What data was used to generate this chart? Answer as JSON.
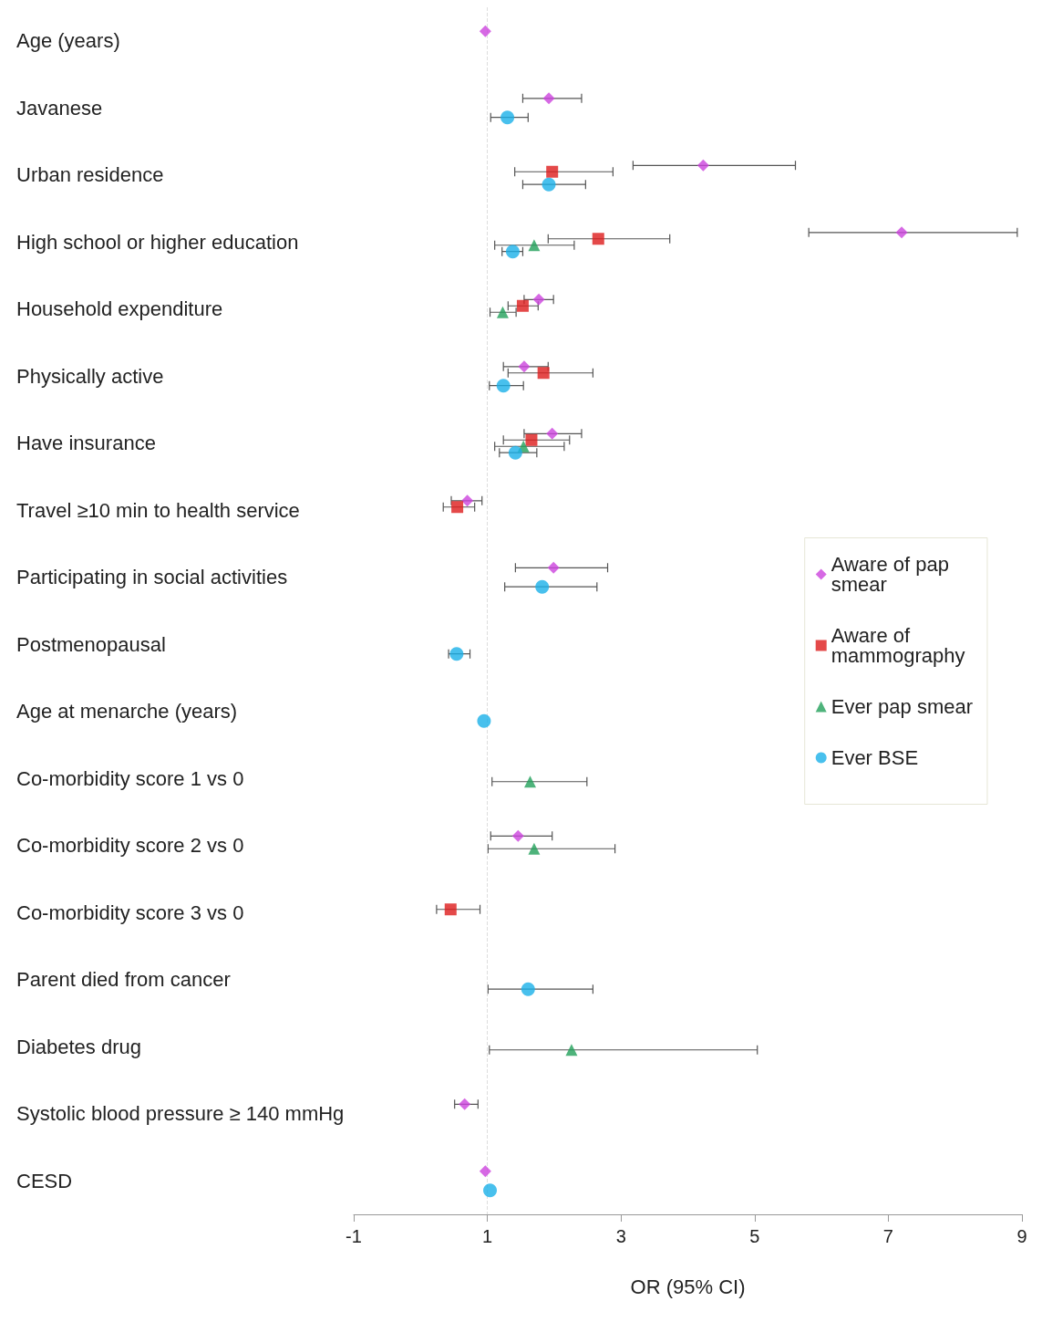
{
  "chart_data": {
    "type": "scatter",
    "orientation": "horizontal",
    "xlabel": "OR (95% CI)",
    "xlim": [
      -1,
      9
    ],
    "xticks": [
      -1,
      1,
      3,
      5,
      7,
      9
    ],
    "grid": false,
    "legend": "right",
    "categories": [
      "Age (years)",
      "Javanese",
      "Urban residence",
      "High school or higher education",
      "Household expenditure",
      "Physically active",
      "Have insurance",
      "Travel ≥10 min to health service",
      "Participating in social activities",
      "Postmenopausal",
      "Age at menarche (years)",
      "Co-morbidity score 1 vs 0",
      "Co-morbidity score 2 vs 0",
      "Co-morbidity score 3 vs 0",
      "Parent died from cancer",
      "Diabetes drug",
      "Systolic blood pressure ≥ 140 mmHg",
      "CESD"
    ],
    "ref_lines": [
      {
        "axis": "x",
        "value": 1,
        "color": "#dddddd",
        "line_style": "dashed"
      }
    ],
    "series": [
      {
        "name": "Aware of pap smear",
        "color": "#cc44dd",
        "marker": "diamond",
        "values": [
          0.97,
          1.92,
          4.23,
          7.2,
          1.77,
          1.55,
          1.97,
          0.7,
          1.99,
          null,
          null,
          null,
          1.46,
          null,
          null,
          null,
          0.66,
          0.97
        ],
        "errors": [
          null,
          [
            1.53,
            2.41
          ],
          [
            3.18,
            5.61
          ],
          [
            5.81,
            8.93
          ],
          [
            1.55,
            1.99
          ],
          [
            1.24,
            1.91
          ],
          [
            1.55,
            2.41
          ],
          [
            0.46,
            0.92
          ],
          [
            1.42,
            2.8
          ],
          null,
          null,
          null,
          [
            1.05,
            1.97
          ],
          null,
          null,
          null,
          [
            0.51,
            0.86
          ],
          null
        ]
      },
      {
        "name": "Aware of mammography",
        "color": "#dd1c1c",
        "marker": "square",
        "values": [
          null,
          null,
          1.97,
          2.66,
          1.53,
          1.84,
          1.66,
          0.55,
          null,
          null,
          null,
          null,
          null,
          0.45,
          null,
          null,
          null,
          null
        ],
        "errors": [
          null,
          null,
          [
            1.41,
            2.88
          ],
          [
            1.91,
            3.73
          ],
          [
            1.31,
            1.76
          ],
          [
            1.31,
            2.58
          ],
          [
            1.24,
            2.23
          ],
          [
            0.34,
            0.81
          ],
          null,
          null,
          null,
          null,
          null,
          [
            0.24,
            0.89
          ],
          null,
          null,
          null,
          null
        ]
      },
      {
        "name": "Ever pap smear",
        "color": "#22a05a",
        "marker": "triangle",
        "values": [
          null,
          null,
          null,
          1.7,
          1.23,
          null,
          1.54,
          null,
          null,
          null,
          null,
          1.64,
          1.7,
          null,
          null,
          2.26,
          null,
          null
        ],
        "errors": [
          null,
          null,
          null,
          [
            1.11,
            2.3
          ],
          [
            1.04,
            1.43
          ],
          null,
          [
            1.11,
            2.15
          ],
          null,
          null,
          null,
          null,
          [
            1.07,
            2.49
          ],
          [
            1.01,
            2.91
          ],
          null,
          null,
          [
            1.03,
            5.04
          ],
          null,
          null
        ]
      },
      {
        "name": "Ever BSE",
        "color": "#1ab0e8",
        "marker": "circle",
        "values": [
          null,
          1.3,
          1.92,
          1.38,
          null,
          1.24,
          1.42,
          null,
          1.82,
          0.54,
          0.95,
          null,
          null,
          null,
          1.61,
          null,
          null,
          1.04
        ],
        "errors": [
          null,
          [
            1.05,
            1.61
          ],
          [
            1.53,
            2.47
          ],
          [
            1.22,
            1.53
          ],
          null,
          [
            1.03,
            1.54
          ],
          [
            1.18,
            1.74
          ],
          null,
          [
            1.26,
            2.64
          ],
          [
            0.42,
            0.74
          ],
          null,
          null,
          null,
          null,
          [
            1.01,
            2.58
          ],
          null,
          null,
          null
        ]
      }
    ]
  }
}
